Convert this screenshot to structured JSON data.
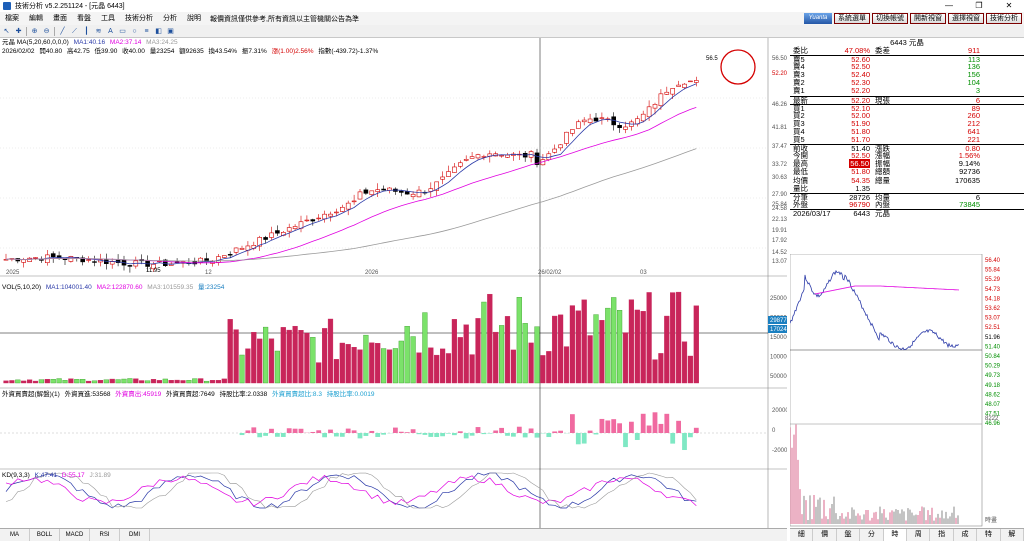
{
  "window": {
    "title": "技術分析 v5.2.251124 - [元晶 6443]",
    "buttons": [
      "—",
      "❐",
      "✕"
    ]
  },
  "menu": {
    "items": [
      "檔案",
      "編輯",
      "畫面",
      "看盤",
      "工具",
      "技術分析",
      "分析",
      "說明"
    ],
    "notice": "報價資訊僅供參考,所有資訊以主管機關公告為準",
    "logo": "Yuanta",
    "quick_buttons": [
      "系統選單",
      "切換帳號",
      "開新視窗",
      "選擇視窗",
      "技術分析"
    ]
  },
  "toolbar": {
    "icons": [
      "select-icon",
      "crosshair-icon",
      "zoom-in-icon",
      "zoom-out-icon",
      "line-icon",
      "trend-icon",
      "bar-style-icon",
      "indicator-icon",
      "text-icon",
      "rect-icon",
      "circle-icon",
      "fib-icon",
      "color-icon",
      "save-icon"
    ]
  },
  "main": {
    "ma_label": "元晶 MA(5,20,60,0,0,0)",
    "ma_values": [
      "MA1:40.16",
      "MA2:37.14",
      "MA3:24.25"
    ],
    "ohlc": [
      "2026/02/02",
      "開40.80",
      "高42.75",
      "低39.90",
      "收40.00",
      "量23254",
      "額92635",
      "換43.54%",
      "振7.31%",
      "漲(1.00)2.56%",
      "指數(-439.72)-1.37%"
    ],
    "y_labels": [
      "56.50",
      "52.20",
      "46.26",
      "41.81",
      "37.47",
      "33.72",
      "30.63",
      "27.90",
      "25.84",
      "24.58",
      "22.13",
      "19.91",
      "17.92",
      "14.52",
      "13.07"
    ],
    "x_labels": [
      "2025",
      "12",
      "2026",
      "26/02/02",
      "03"
    ],
    "peak_label": "56.5",
    "low_label": "11.95",
    "price_marker": "52.20",
    "colors": {
      "up": "#d40000",
      "down": "#000000",
      "ma5": "#2b3aa8",
      "ma20": "#e000e0",
      "ma60": "#9a9a9a"
    }
  },
  "vol": {
    "label": "VOL(5,10,20)",
    "values": [
      "MA1:104001.40",
      "MA2:122870.60",
      "MA3:101559.35",
      "量:23254"
    ],
    "y_labels": [
      "2500000",
      "2000000",
      "1500000",
      "1000000",
      "500000"
    ],
    "tag1": "29877",
    "tag2": "170241"
  },
  "flow": {
    "label": "外資買賣超(解盤)(1)",
    "values": [
      "外資買進:53568",
      "外資賣出:45919",
      "外資買賣超:7649",
      "持股比率:2.0338",
      "外資買賣超比:8.3",
      "持股比率:0.0019"
    ],
    "y_labels": [
      "20000",
      "0",
      "-20000"
    ]
  },
  "kd": {
    "label": "KD(9,3,3)",
    "values": [
      "K:47.41",
      "D:55.17",
      "J:31.89"
    ]
  },
  "bottom_tabs": [
    "MA",
    "BOLL",
    "MACD",
    "RSI",
    "DMI"
  ],
  "quote": {
    "header": "6443 元晶",
    "rows": [
      {
        "k1": "委比",
        "v1": "47.08%",
        "k2": "委差",
        "v2": "911",
        "c1": "red",
        "c2": "red"
      },
      {
        "k1": "賣5",
        "v1": "52.60",
        "k2": "",
        "v2": "113",
        "c1": "red",
        "c2": "green"
      },
      {
        "k1": "賣4",
        "v1": "52.50",
        "k2": "",
        "v2": "136",
        "c1": "red",
        "c2": "green"
      },
      {
        "k1": "賣3",
        "v1": "52.40",
        "k2": "",
        "v2": "156",
        "c1": "red",
        "c2": "green"
      },
      {
        "k1": "賣2",
        "v1": "52.30",
        "k2": "",
        "v2": "104",
        "c1": "red",
        "c2": "green"
      },
      {
        "k1": "賣1",
        "v1": "52.20",
        "k2": "",
        "v2": "3",
        "c1": "red",
        "c2": "green"
      },
      {
        "k1": "最新",
        "v1": "52.20",
        "k2": "現張",
        "v2": "6",
        "c1": "red",
        "c2": "red"
      },
      {
        "k1": "買1",
        "v1": "52.10",
        "k2": "",
        "v2": "89",
        "c1": "red",
        "c2": "red"
      },
      {
        "k1": "買2",
        "v1": "52.00",
        "k2": "",
        "v2": "260",
        "c1": "red",
        "c2": "red"
      },
      {
        "k1": "買3",
        "v1": "51.90",
        "k2": "",
        "v2": "212",
        "c1": "red",
        "c2": "red"
      },
      {
        "k1": "買4",
        "v1": "51.80",
        "k2": "",
        "v2": "641",
        "c1": "red",
        "c2": "red"
      },
      {
        "k1": "買5",
        "v1": "51.70",
        "k2": "",
        "v2": "221",
        "c1": "red",
        "c2": "red"
      },
      {
        "k1": "前收",
        "v1": "51.40",
        "k2": "漲跌",
        "v2": "0.80",
        "c1": "",
        "c2": "red"
      },
      {
        "k1": "今開",
        "v1": "52.50",
        "k2": "漲幅",
        "v2": "1.56%",
        "c1": "red",
        "c2": "red"
      },
      {
        "k1": "最高",
        "v1": "56.50",
        "k2": "振幅",
        "v2": "9.14%",
        "c1": "limit",
        "c2": ""
      },
      {
        "k1": "最低",
        "v1": "51.80",
        "k2": "總額",
        "v2": "92736",
        "c1": "red",
        "c2": ""
      },
      {
        "k1": "均價",
        "v1": "54.35",
        "k2": "總量",
        "v2": "170635",
        "c1": "red",
        "c2": ""
      },
      {
        "k1": "量比",
        "v1": "1.35",
        "k2": "",
        "v2": "",
        "c1": "",
        "c2": ""
      },
      {
        "k1": "分筆",
        "v1": "28726",
        "k2": "均量",
        "v2": "6",
        "c1": "",
        "c2": ""
      },
      {
        "k1": "外盤",
        "v1": "96790",
        "k2": "內盤",
        "v2": "73845",
        "c1": "red",
        "c2": "green"
      },
      {
        "k1": "2026/03/17",
        "v1": "6443",
        "k2": "元晶",
        "v2": "",
        "c1": "",
        "c2": ""
      }
    ]
  },
  "mini": {
    "y_labels": [
      "56.40",
      "55.84",
      "55.29",
      "54.73",
      "54.18",
      "53.62",
      "53.07",
      "52.51",
      "51.96",
      "51.40",
      "50.84",
      "50.29",
      "49.73",
      "49.18",
      "48.62",
      "48.07",
      "47.51",
      "46.96"
    ],
    "vol_label": "8222",
    "time_label": "時畫"
  },
  "right_tabs": [
    "細",
    "價",
    "盤",
    "分",
    "時",
    "周",
    "指",
    "成",
    "特",
    "解"
  ]
}
